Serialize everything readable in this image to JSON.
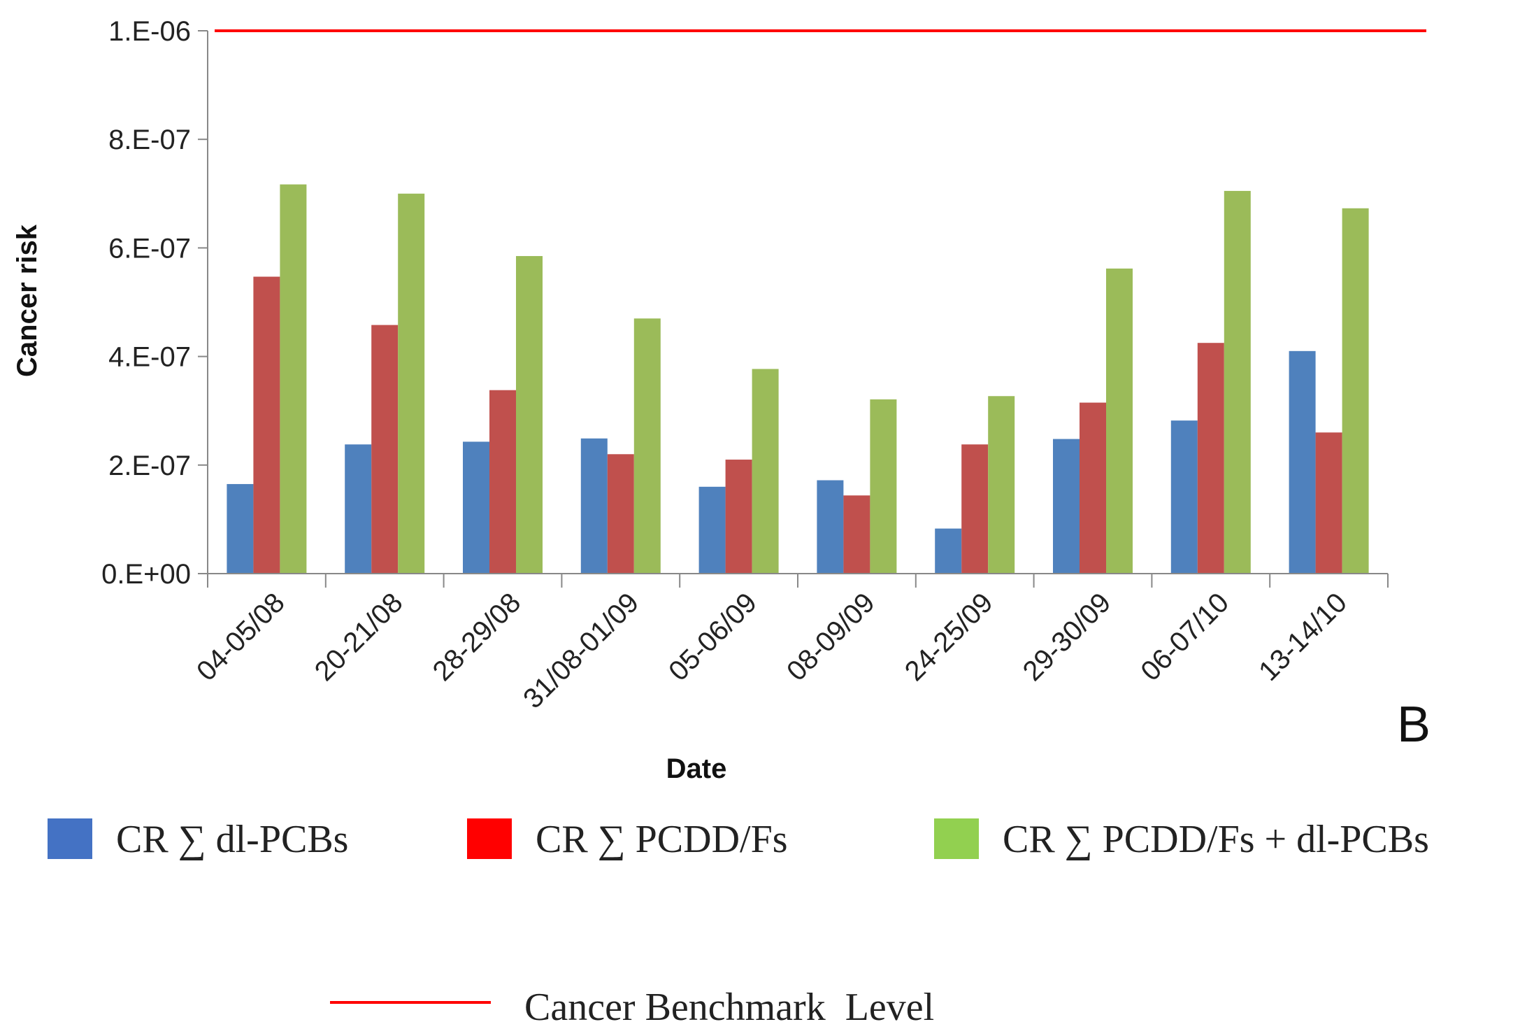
{
  "chart_data": {
    "type": "bar",
    "title": "",
    "panel_label": "B",
    "xlabel": "Date",
    "ylabel": "Cancer risk",
    "ylim": [
      0,
      1e-06
    ],
    "y_ticks": [
      {
        "value": 0,
        "label": "0.E+00"
      },
      {
        "value": 2e-07,
        "label": "2.E-07"
      },
      {
        "value": 4e-07,
        "label": "4.E-07"
      },
      {
        "value": 6e-07,
        "label": "6.E-07"
      },
      {
        "value": 8e-07,
        "label": "8.E-07"
      },
      {
        "value": 1e-06,
        "label": "1.E-06"
      }
    ],
    "categories": [
      "04-05/08",
      "20-21/08",
      "28-29/08",
      "31/08-01/09",
      "05-06/09",
      "08-09/09",
      "24-25/09",
      "29-30/09",
      "06-07/10",
      "13-14/10"
    ],
    "series": [
      {
        "name": "CR ∑ dl-PCBs",
        "color": "#4F81BD",
        "legend_color": "#4472C4",
        "values": [
          1.65e-07,
          2.38e-07,
          2.43e-07,
          2.49e-07,
          1.6e-07,
          1.72e-07,
          8.3e-08,
          2.48e-07,
          2.82e-07,
          4.1e-07
        ]
      },
      {
        "name": "CR ∑ PCDD/Fs",
        "color": "#C0504D",
        "legend_color": "#FF0000",
        "values": [
          5.47e-07,
          4.58e-07,
          3.38e-07,
          2.2e-07,
          2.1e-07,
          1.44e-07,
          2.38e-07,
          3.15e-07,
          4.25e-07,
          2.6e-07
        ]
      },
      {
        "name": "CR ∑ PCDD/Fs + dl-PCBs",
        "color": "#9BBB59",
        "legend_color": "#92D050",
        "values": [
          7.17e-07,
          7e-07,
          5.85e-07,
          4.7e-07,
          3.77e-07,
          3.21e-07,
          3.27e-07,
          5.62e-07,
          7.05e-07,
          6.73e-07
        ]
      }
    ],
    "reference_line": {
      "name": "Cancer Benchmark  Level",
      "value": 1e-06,
      "color": "#FF0000"
    },
    "legend_placement": "bottom"
  }
}
